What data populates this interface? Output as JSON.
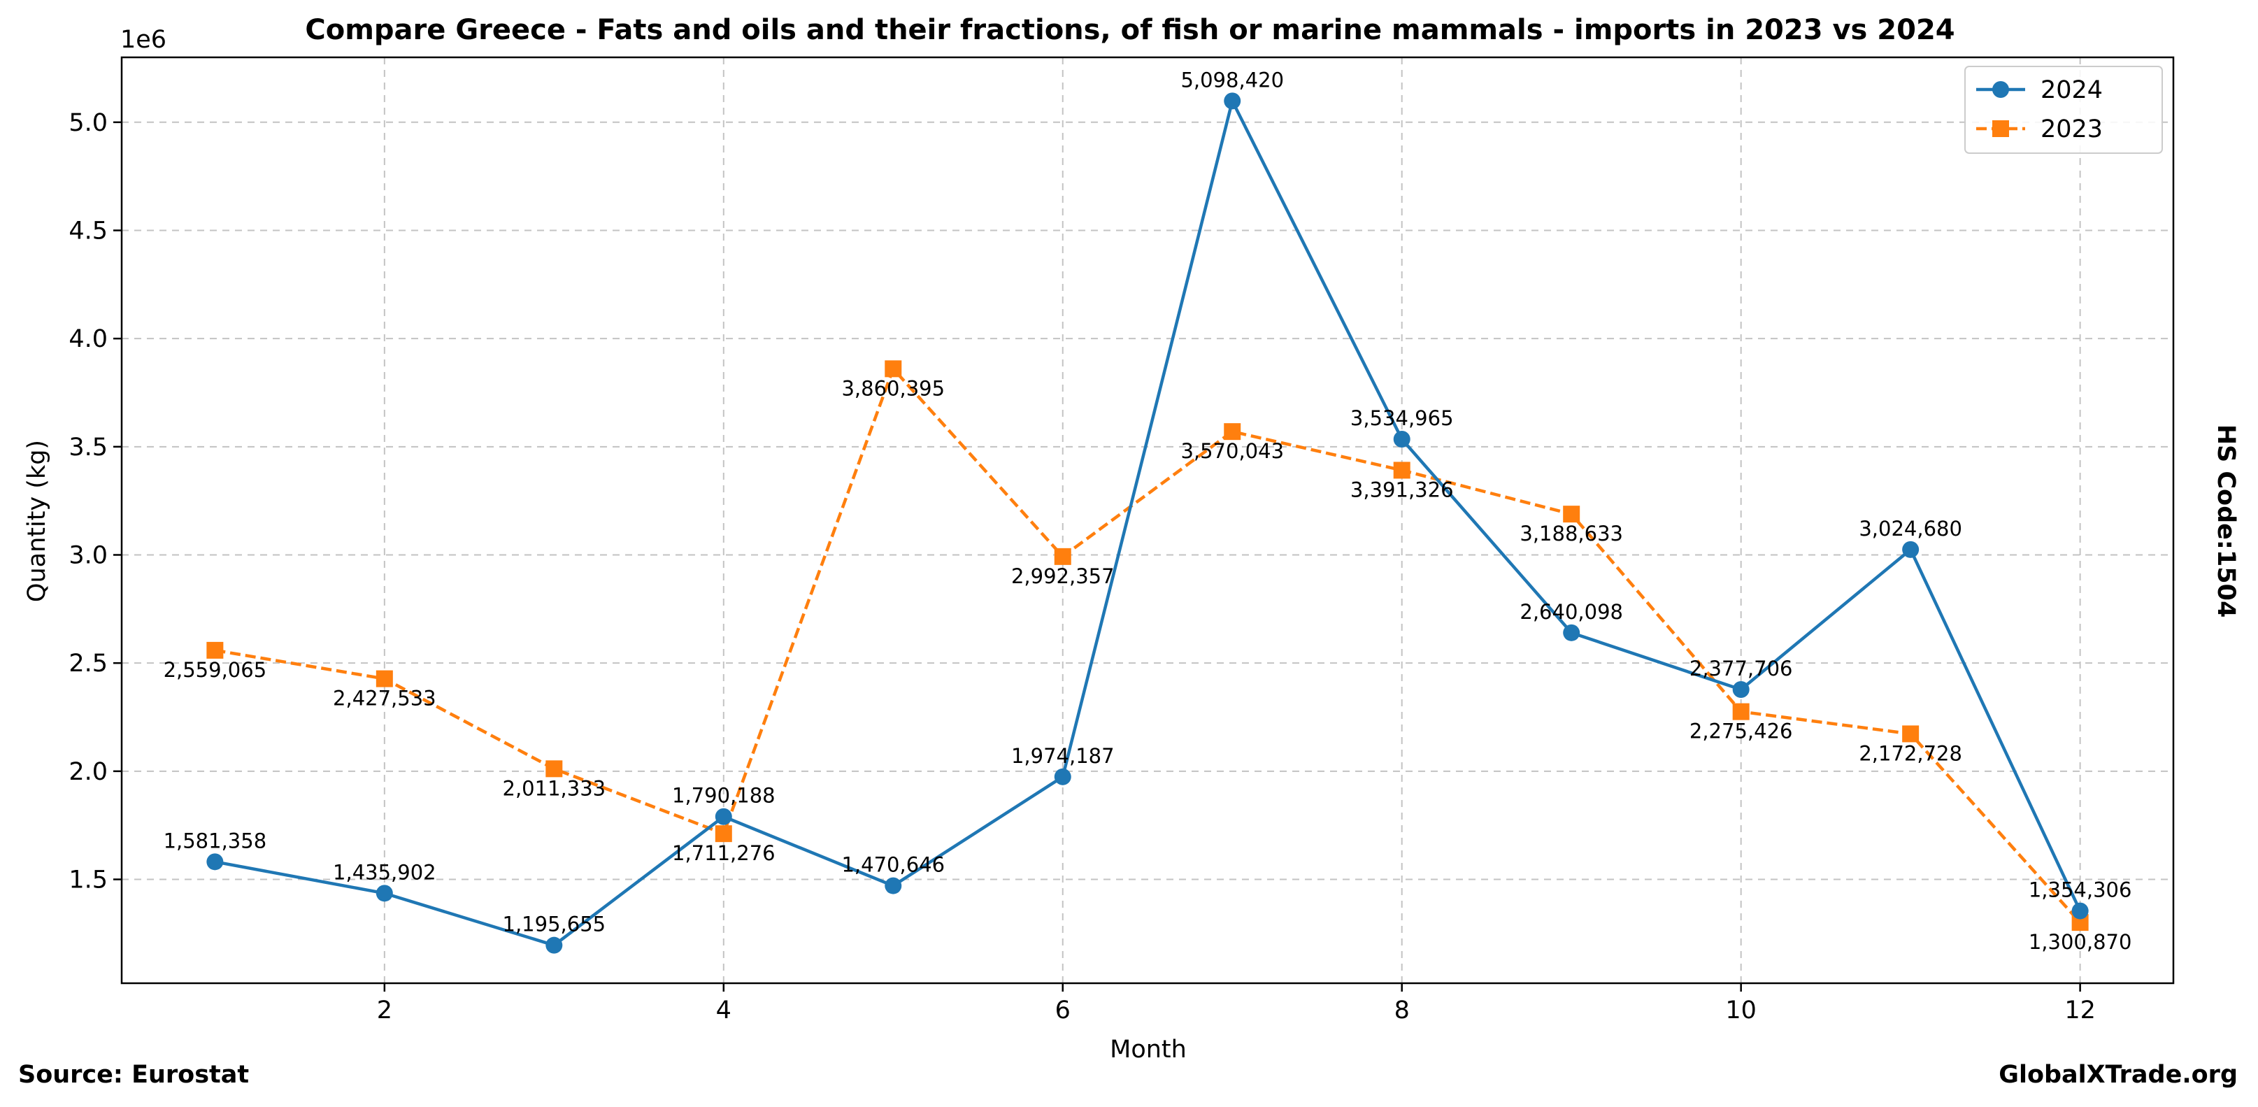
{
  "chart_data": {
    "type": "line",
    "title": "Compare Greece - Fats and oils and their fractions, of fish or marine mammals - imports in 2023 vs 2024",
    "xlabel": "Month",
    "ylabel": "Quantity (kg)",
    "y_offset_label": "1e6",
    "xlim": [
      0.45,
      12.55
    ],
    "ylim": [
      1020000,
      5300000
    ],
    "x_ticks": [
      2,
      4,
      6,
      8,
      10,
      12
    ],
    "y_ticks": [
      1.5,
      2.0,
      2.5,
      3.0,
      3.5,
      4.0,
      4.5,
      5.0
    ],
    "y_tick_scale": 1000000,
    "grid": true,
    "legend_position": "upper right",
    "x": [
      1,
      2,
      3,
      4,
      5,
      6,
      7,
      8,
      9,
      10,
      11,
      12
    ],
    "series": [
      {
        "name": "2024",
        "color": "#1f77b4",
        "line_style": "solid",
        "marker": "circle",
        "label_position": "above",
        "values": [
          1581358,
          1435902,
          1195655,
          1790188,
          1470646,
          1974187,
          5098420,
          3534965,
          2640098,
          2377706,
          3024680,
          1354306
        ]
      },
      {
        "name": "2023",
        "color": "#ff7f0e",
        "line_style": "dashed",
        "marker": "square",
        "label_position": "below",
        "values": [
          2559065,
          2427533,
          2011333,
          1711276,
          3860395,
          2992357,
          3570043,
          3391326,
          3188633,
          2275426,
          2172728,
          1300870
        ]
      }
    ],
    "side_label": "HS Code:1504",
    "source": "Source: Eurostat",
    "watermark": "GlobalXTrade.org"
  }
}
